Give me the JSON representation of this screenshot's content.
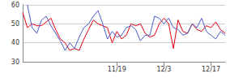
{
  "chart_data": {
    "type": "line",
    "categories": [
      null,
      null,
      null,
      null,
      null,
      null,
      null,
      null,
      null,
      null,
      null,
      null,
      null,
      null,
      null,
      null,
      null,
      null,
      null,
      null,
      "11/19",
      null,
      null,
      null,
      null,
      null,
      null,
      null,
      null,
      null,
      "12/3",
      null,
      null,
      null,
      null,
      null,
      null,
      null,
      null,
      null,
      "12/17",
      null,
      null,
      null
    ],
    "series": [
      {
        "color": "#e60012",
        "values": [
          56,
          48,
          50,
          49,
          49,
          51,
          53,
          47,
          42,
          40,
          36,
          37,
          36,
          42,
          47,
          52,
          50,
          49,
          48,
          40,
          46,
          42,
          44,
          50,
          49,
          50,
          45,
          43,
          44,
          50,
          53,
          50,
          37,
          52,
          46,
          45,
          50,
          47,
          46,
          49,
          48,
          51,
          47,
          45
        ]
      },
      {
        "color": "#4a5cc8",
        "values": [
          null,
          60,
          48,
          45,
          52,
          54,
          49,
          45,
          41,
          36,
          40,
          37,
          43,
          48,
          50,
          54,
          57,
          50,
          42,
          46,
          43,
          44,
          48,
          49,
          47,
          41,
          44,
          44,
          54,
          53,
          50,
          53,
          48,
          47,
          44,
          45,
          50,
          48,
          53,
          46,
          44,
          42,
          46,
          44
        ]
      }
    ],
    "ylim": [
      30,
      60
    ],
    "yticks": [
      30,
      40,
      50,
      60
    ],
    "grid": true
  }
}
